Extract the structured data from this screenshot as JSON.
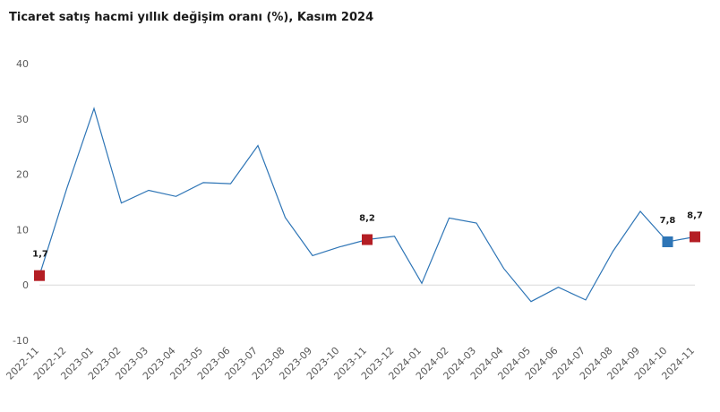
{
  "chart_data": {
    "type": "line",
    "title": "Ticaret satış hacmi yıllık değişim oranı (%), Kasım 2024",
    "xlabel": "",
    "ylabel": "",
    "ylim": [
      -10,
      40
    ],
    "yticks": [
      -10,
      0,
      10,
      20,
      30,
      40
    ],
    "grid": false,
    "categories": [
      "2022-11",
      "2022-12",
      "2023-01",
      "2023-02",
      "2023-03",
      "2023-04",
      "2023-05",
      "2023-06",
      "2023-07",
      "2023-08",
      "2023-09",
      "2023-10",
      "2023-11",
      "2023-12",
      "2024-01",
      "2024-02",
      "2024-03",
      "2024-04",
      "2024-05",
      "2024-06",
      "2024-07",
      "2024-08",
      "2024-09",
      "2024-10",
      "2024-11"
    ],
    "series": [
      {
        "values": [
          1.7,
          17.4,
          31.9,
          14.8,
          17.1,
          16.0,
          18.5,
          18.3,
          25.2,
          12.2,
          5.3,
          6.9,
          8.2,
          8.8,
          0.3,
          12.1,
          11.2,
          3.0,
          -3.0,
          -0.4,
          -2.7,
          6.1,
          13.3,
          7.8,
          8.7
        ],
        "color": "#2e75b6"
      }
    ],
    "highlights": [
      {
        "index": 0,
        "label": "1,7",
        "color": "#b41e24"
      },
      {
        "index": 12,
        "label": "8,2",
        "color": "#b41e24"
      },
      {
        "index": 23,
        "label": "7,8",
        "color": "#2e75b6"
      },
      {
        "index": 24,
        "label": "8,7",
        "color": "#b41e24"
      }
    ],
    "colors": {
      "line": "#2e75b6",
      "red_marker": "#b41e24",
      "blue_marker": "#2e75b6",
      "axis": "#d9d9d9",
      "text": "#595959"
    }
  }
}
